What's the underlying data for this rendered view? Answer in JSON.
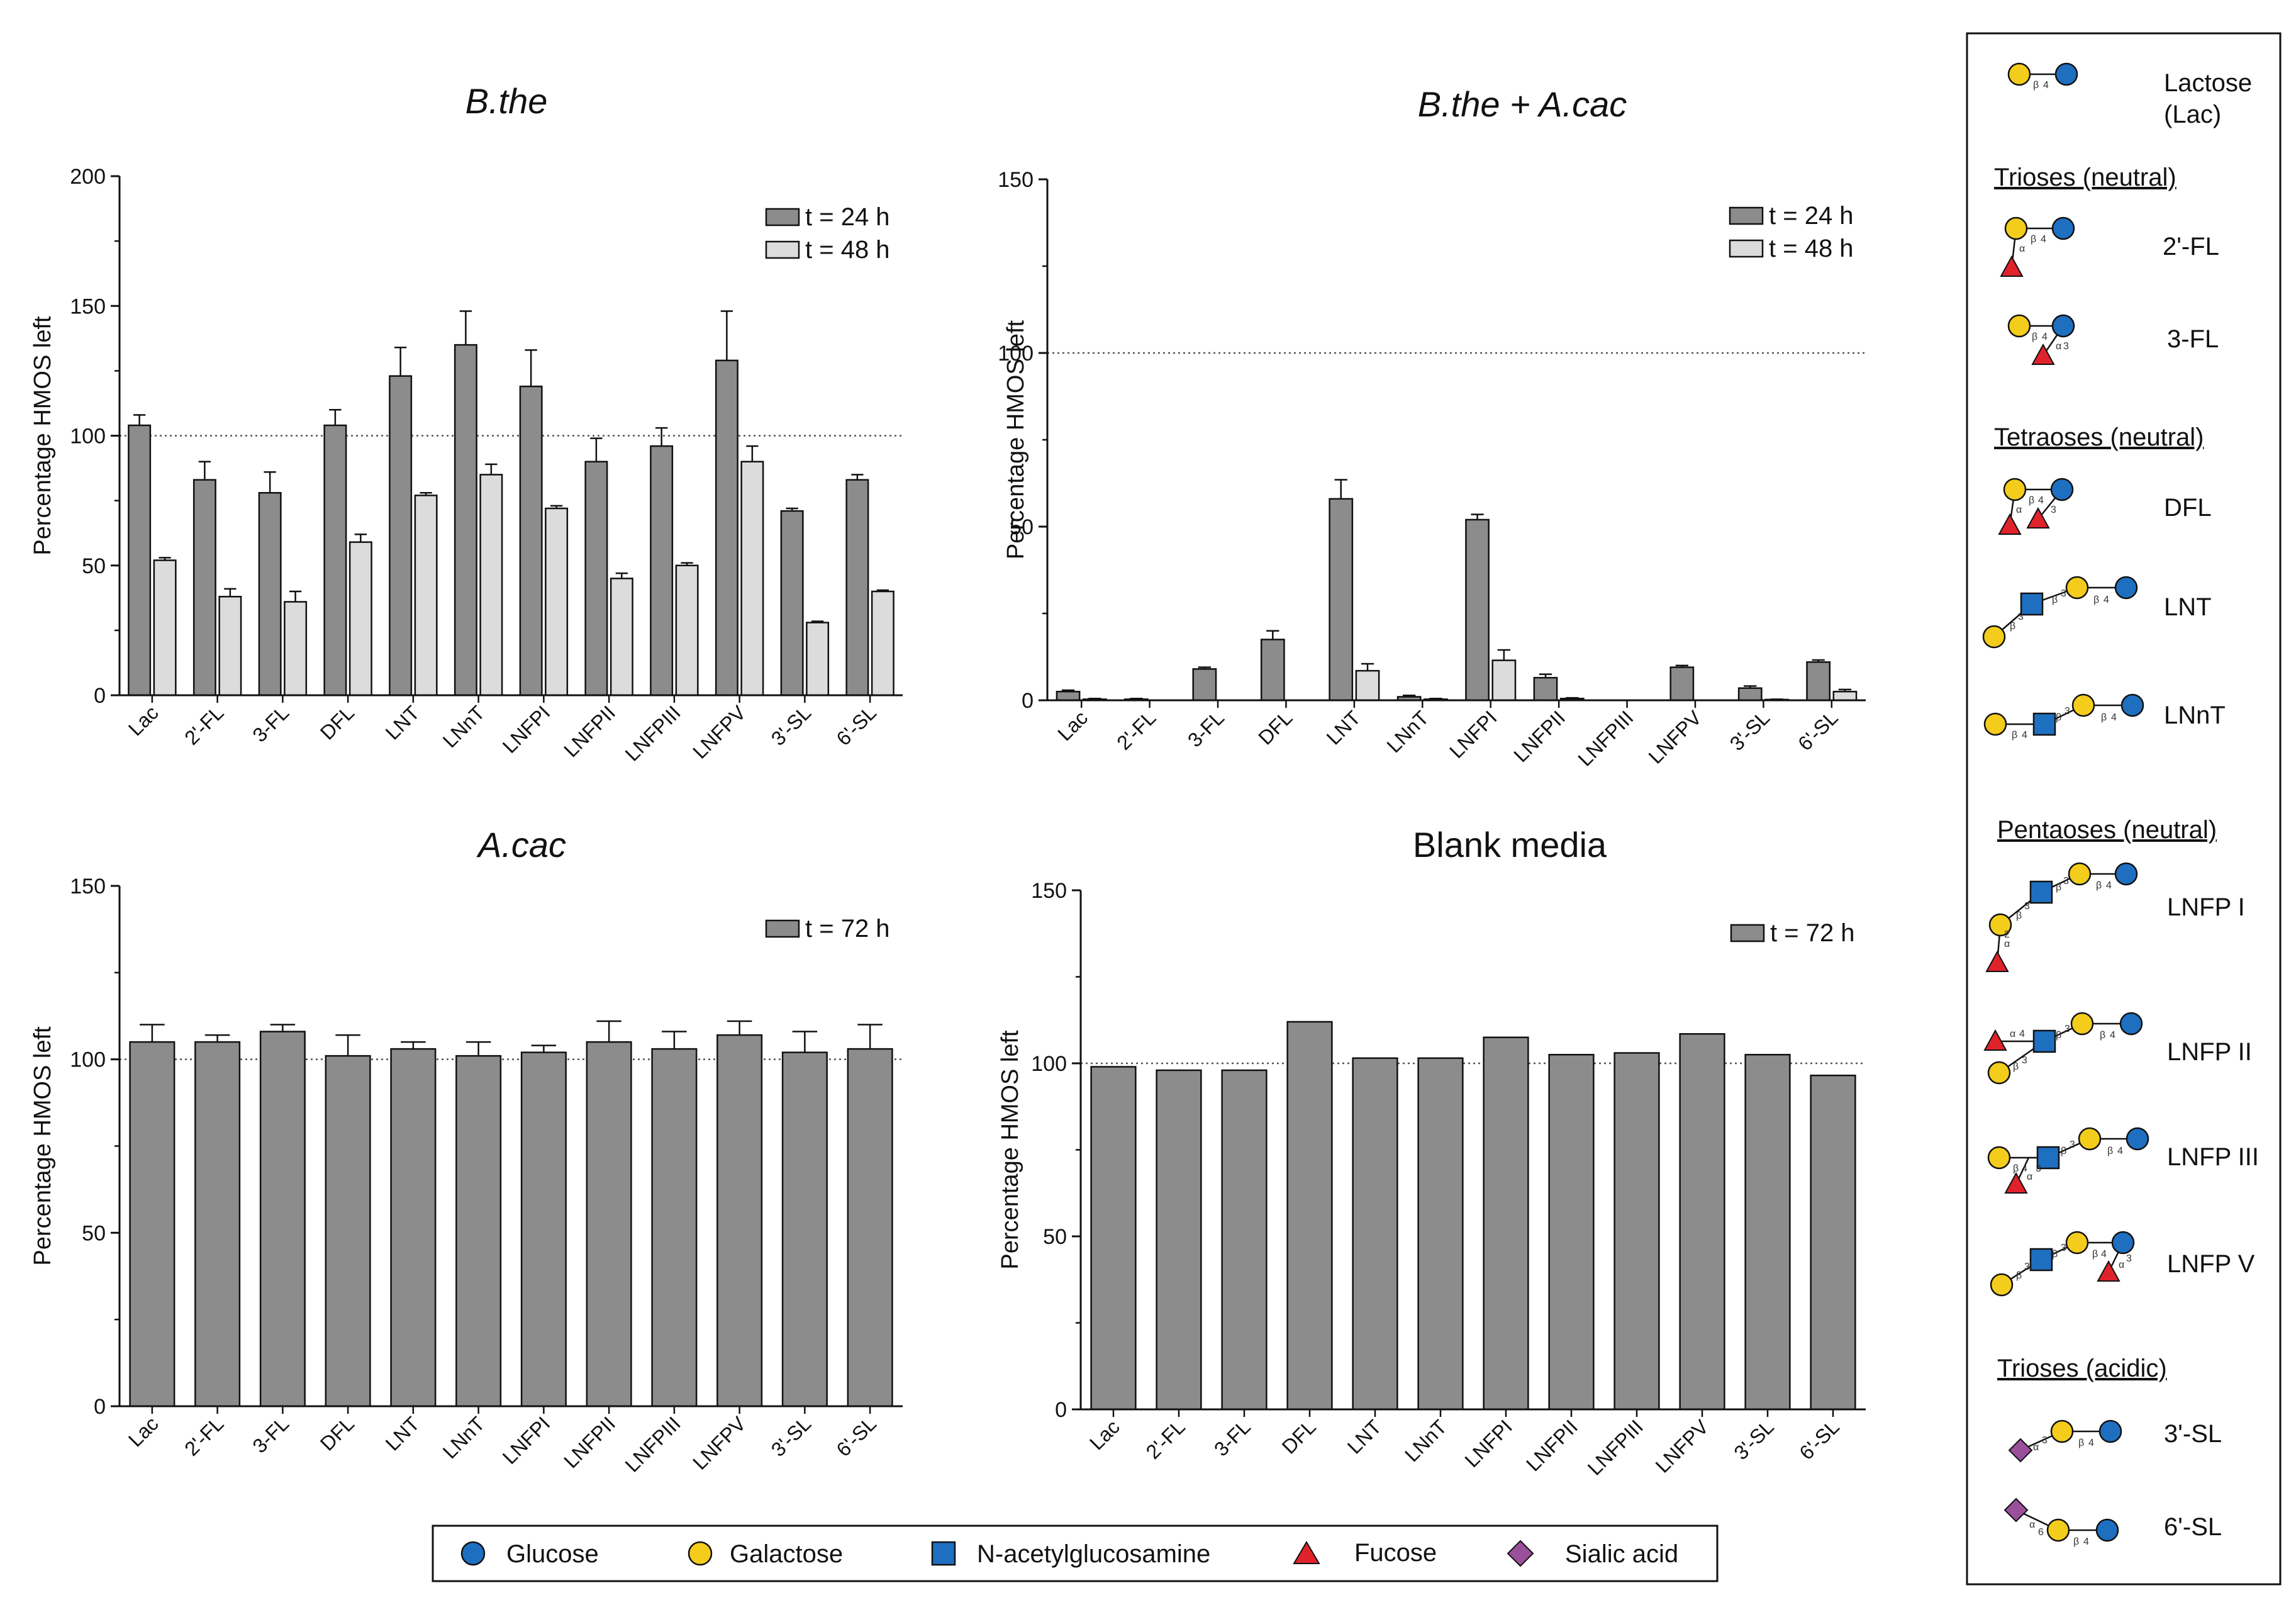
{
  "colors": {
    "t24": "#8c8c8c",
    "t48": "#dcdcdc",
    "t72": "#8c8c8c",
    "glucose": "#1f6fc1",
    "galactose": "#f4cc1c",
    "glcnac": "#1f6fc1",
    "fucose": "#e0232b",
    "sialic": "#9a4f9b"
  },
  "chart_data": [
    {
      "type": "bar",
      "title": "B.the",
      "title_italic": true,
      "ylabel": "Percentage HMOS left",
      "xlabel": "",
      "ylim": [
        0,
        200
      ],
      "yticks": [
        0,
        50,
        100,
        150,
        200
      ],
      "reference_line": 100,
      "legend_position": "top-right",
      "categories": [
        "Lac",
        "2'-FL",
        "3-FL",
        "DFL",
        "LNT",
        "LNnT",
        "LNFPI",
        "LNFPII",
        "LNFPIII",
        "LNFPV",
        "3'-SL",
        "6'-SL"
      ],
      "series": [
        {
          "name": "t = 24 h",
          "color_key": "t24",
          "values": [
            104,
            83,
            78,
            104,
            123,
            135,
            119,
            90,
            96,
            129,
            71,
            83
          ],
          "errors": [
            4,
            7,
            8,
            6,
            11,
            13,
            14,
            9,
            7,
            19,
            1,
            2
          ]
        },
        {
          "name": "t = 48 h",
          "color_key": "t48",
          "values": [
            52,
            38,
            36,
            59,
            77,
            85,
            72,
            45,
            50,
            90,
            28,
            40
          ],
          "errors": [
            1,
            3,
            4,
            3,
            1,
            4,
            1,
            2,
            1,
            6,
            0.5,
            0.5
          ]
        }
      ]
    },
    {
      "type": "bar",
      "title": "B.the + A.cac",
      "title_italic": true,
      "ylabel": "Percentage HMOS left",
      "xlabel": "",
      "ylim": [
        0,
        150
      ],
      "yticks": [
        0,
        50,
        100,
        150
      ],
      "reference_line": 100,
      "legend_position": "top-right",
      "categories": [
        "Lac",
        "2'-FL",
        "3-FL",
        "DFL",
        "LNT",
        "LNnT",
        "LNFPI",
        "LNFPII",
        "LNFPIII",
        "LNFPV",
        "3'-SL",
        "6'-SL"
      ],
      "series": [
        {
          "name": "t = 24 h",
          "color_key": "t24",
          "values": [
            2.5,
            0.3,
            9,
            17.5,
            58,
            1,
            52,
            6.5,
            0,
            9.5,
            3.5,
            11
          ],
          "errors": [
            0.4,
            0.2,
            0.5,
            2.5,
            5.5,
            0.4,
            1.5,
            1,
            0,
            0.5,
            0.6,
            0.6
          ]
        },
        {
          "name": "t = 48 h",
          "color_key": "t48",
          "values": [
            0.3,
            0,
            0,
            0,
            8.5,
            0.3,
            11.5,
            0.5,
            0,
            0,
            0.2,
            2.5
          ],
          "errors": [
            0.2,
            0,
            0,
            0,
            2,
            0.2,
            3,
            0.2,
            0,
            0,
            0.1,
            0.6
          ]
        }
      ]
    },
    {
      "type": "bar",
      "title": "A.cac",
      "title_italic": true,
      "ylabel": "Percentage HMOS left",
      "xlabel": "",
      "ylim": [
        0,
        150
      ],
      "yticks": [
        0,
        50,
        100,
        150
      ],
      "reference_line": 100,
      "legend_position": "top-right",
      "categories": [
        "Lac",
        "2'-FL",
        "3-FL",
        "DFL",
        "LNT",
        "LNnT",
        "LNFPI",
        "LNFPII",
        "LNFPIII",
        "LNFPV",
        "3'-SL",
        "6'-SL"
      ],
      "series": [
        {
          "name": "t = 72 h",
          "color_key": "t72",
          "values": [
            105,
            105,
            108,
            101,
            103,
            101,
            102,
            105,
            103,
            107,
            102,
            103
          ],
          "errors": [
            5,
            2,
            2,
            6,
            2,
            4,
            2,
            6,
            5,
            4,
            6,
            7
          ]
        }
      ]
    },
    {
      "type": "bar",
      "title": "Blank media",
      "title_italic": false,
      "ylabel": "Percentage HMOS left",
      "xlabel": "",
      "ylim": [
        0,
        150
      ],
      "yticks": [
        0,
        50,
        100,
        150
      ],
      "reference_line": 100,
      "legend_position": "top-right",
      "categories": [
        "Lac",
        "2'-FL",
        "3-FL",
        "DFL",
        "LNT",
        "LNnT",
        "LNFPI",
        "LNFPII",
        "LNFPIII",
        "LNFPV",
        "3'-SL",
        "6'-SL"
      ],
      "series": [
        {
          "name": "t = 72 h",
          "color_key": "t72",
          "values": [
            99,
            98,
            98,
            112,
            101.5,
            101.5,
            107.5,
            102.5,
            103,
            108.5,
            102.5,
            96.5
          ],
          "errors": []
        }
      ]
    }
  ],
  "structure_key": {
    "groups": [
      "Trioses (neutral)",
      "Tetraoses (neutral)",
      "Pentaoses (neutral)",
      "Trioses (acidic)"
    ],
    "items": [
      {
        "name": "Lactose",
        "name2": "(Lac)"
      },
      {
        "name": "2'-FL"
      },
      {
        "name": "3-FL"
      },
      {
        "name": "DFL"
      },
      {
        "name": "LNT"
      },
      {
        "name": "LNnT"
      },
      {
        "name": "LNFP I"
      },
      {
        "name": "LNFP II"
      },
      {
        "name": "LNFP III"
      },
      {
        "name": "LNFP V"
      },
      {
        "name": "3'-SL"
      },
      {
        "name": "6'-SL"
      }
    ],
    "linkage_labels": {
      "beta": "β",
      "alpha": "α",
      "n2": "2",
      "n3": "3",
      "n4": "4",
      "n6": "6"
    }
  },
  "monosaccharide_legend": [
    {
      "label": "Glucose",
      "icon": "blue-circle-icon"
    },
    {
      "label": "Galactose",
      "icon": "yellow-circle-icon"
    },
    {
      "label": "N-acetylglucosamine",
      "icon": "blue-square-icon"
    },
    {
      "label": "Fucose",
      "icon": "red-triangle-icon"
    },
    {
      "label": "Sialic acid",
      "icon": "purple-diamond-icon"
    }
  ]
}
